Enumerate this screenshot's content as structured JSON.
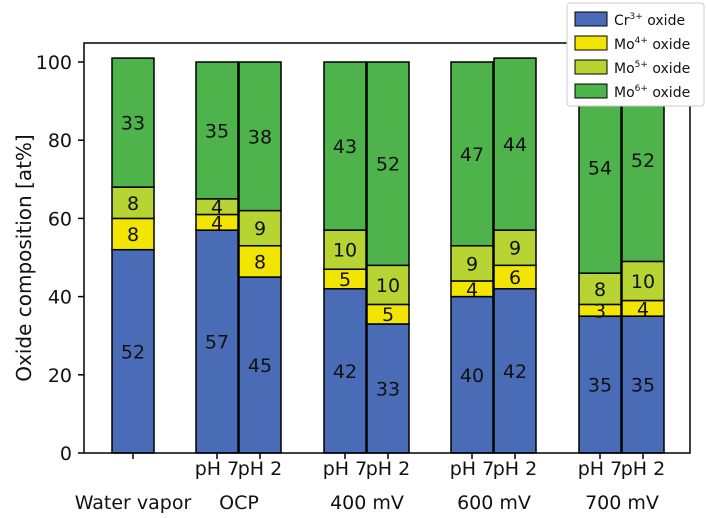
{
  "chart_data": {
    "type": "bar",
    "stacked": true,
    "ylabel": "Oxide composition [at%]",
    "ylim": [
      0,
      100
    ],
    "yticks": [
      0,
      20,
      40,
      60,
      80,
      100
    ],
    "grid": false,
    "legend_position": "top-right",
    "series": [
      {
        "name_html": "Cr<tspan baseline-shift=\"super\" font-size=\"9\">3+</tspan> oxide",
        "name_base": "Cr",
        "name_sup": "3+",
        "name_suffix": " oxide",
        "color": "#4a6bb5",
        "values": [
          52,
          57,
          45,
          42,
          33,
          40,
          42,
          35,
          35
        ]
      },
      {
        "name_base": "Mo",
        "name_sup": "4+",
        "name_suffix": " oxide",
        "color": "#f2e600",
        "values": [
          8,
          4,
          8,
          5,
          5,
          4,
          6,
          3,
          4
        ]
      },
      {
        "name_base": "Mo",
        "name_sup": "5+",
        "name_suffix": " oxide",
        "color": "#b8d433",
        "values": [
          8,
          4,
          9,
          10,
          10,
          9,
          9,
          8,
          10
        ]
      },
      {
        "name_base": "Mo",
        "name_sup": "6+",
        "name_suffix": " oxide",
        "color": "#4db34a",
        "values": [
          33,
          35,
          38,
          43,
          52,
          47,
          44,
          54,
          52
        ]
      }
    ],
    "bars": [
      {
        "sub": "",
        "group": 0
      },
      {
        "sub": "pH 7",
        "group": 1
      },
      {
        "sub": "pH 2",
        "group": 1
      },
      {
        "sub": "pH 7",
        "group": 2
      },
      {
        "sub": "pH 2",
        "group": 2
      },
      {
        "sub": "pH 7",
        "group": 3
      },
      {
        "sub": "pH 2",
        "group": 3
      },
      {
        "sub": "pH 7",
        "group": 4
      },
      {
        "sub": "pH 2",
        "group": 4
      }
    ],
    "groups": [
      "Water vapor",
      "OCP",
      "400 mV",
      "600 mV",
      "700 mV"
    ]
  }
}
